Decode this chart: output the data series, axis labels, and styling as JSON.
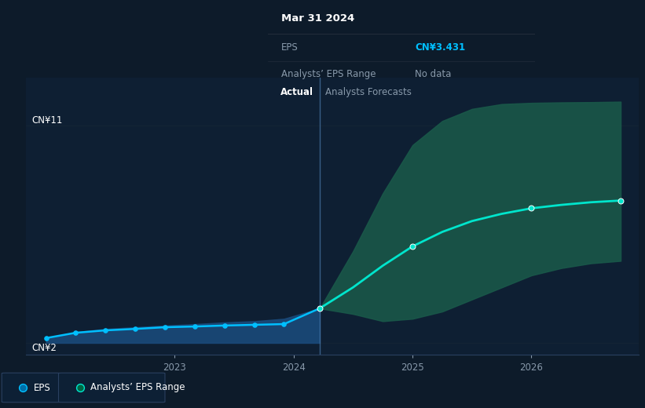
{
  "background_color": "#0d1b2a",
  "plot_bg_color": "#0e1f33",
  "title_text": "Mar 31 2024",
  "tooltip_eps_label": "EPS",
  "tooltip_eps_value": "CN¥3.431",
  "tooltip_range_label": "Analysts’ EPS Range",
  "tooltip_range_value": "No data",
  "ytick_top": "CN¥11",
  "ytick_bottom": "CN¥2",
  "actual_label": "Actual",
  "forecast_label": "Analysts Forecasts",
  "legend_eps": "EPS",
  "legend_range": "Analysts’ EPS Range",
  "ymin": 1.5,
  "ymax": 13.0,
  "actual_x": [
    2021.92,
    2022.17,
    2022.42,
    2022.67,
    2022.92,
    2023.17,
    2023.42,
    2023.67,
    2023.92,
    2024.22
  ],
  "actual_y": [
    2.2,
    2.42,
    2.52,
    2.58,
    2.65,
    2.68,
    2.72,
    2.75,
    2.78,
    3.431
  ],
  "forecast_x": [
    2024.22,
    2024.5,
    2024.75,
    2025.0,
    2025.25,
    2025.5,
    2025.75,
    2026.0,
    2026.25,
    2026.5,
    2026.75
  ],
  "forecast_y": [
    3.431,
    4.3,
    5.2,
    6.0,
    6.6,
    7.05,
    7.35,
    7.58,
    7.72,
    7.83,
    7.9
  ],
  "forecast_upper": [
    3.431,
    5.8,
    8.2,
    10.2,
    11.2,
    11.7,
    11.9,
    11.95,
    11.97,
    11.98,
    12.0
  ],
  "forecast_lower": [
    3.431,
    3.2,
    2.9,
    3.0,
    3.3,
    3.8,
    4.3,
    4.8,
    5.1,
    5.3,
    5.4
  ],
  "actual_band_upper": [
    2.2,
    2.45,
    2.58,
    2.65,
    2.72,
    2.78,
    2.85,
    2.9,
    3.0,
    3.431
  ],
  "actual_band_lower": [
    2.0,
    2.0,
    2.0,
    2.0,
    2.0,
    2.0,
    2.0,
    2.0,
    2.0,
    2.0
  ],
  "split_x": 2024.22,
  "eps_line_color": "#00bfff",
  "forecast_line_color": "#00e5cc",
  "actual_fill_color": "#1a4a7a",
  "forecast_fill_color": "#1a5a4a",
  "divider_color": "#4a7aaa",
  "text_color": "#ffffff",
  "label_color": "#8899aa",
  "tooltip_bg": "#060c14",
  "tooltip_border": "#1a2a3a",
  "tooltip_eps_color": "#00bfff",
  "xmin": 2021.75,
  "xmax": 2026.9,
  "grid_color": "#162535"
}
